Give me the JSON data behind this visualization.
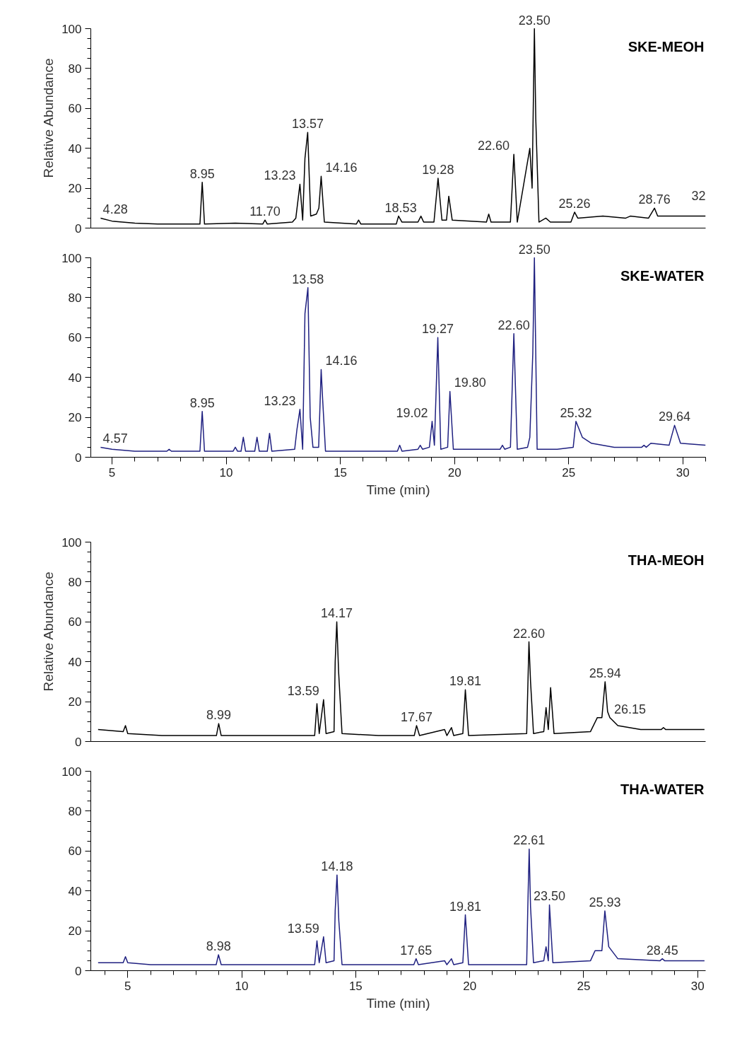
{
  "chart_data": [
    {
      "type": "line",
      "title": "SKE-MEOH",
      "ylabel": "Relative Abundance",
      "xlim": [
        4.07,
        31.0
      ],
      "ylim": [
        0,
        100
      ],
      "yticks": [
        0,
        20,
        40,
        60,
        80,
        100
      ],
      "tick_labels": "y",
      "grid": false,
      "series": [
        {
          "color": "#000000",
          "x": [
            4.5,
            5.0,
            6.0,
            7.0,
            8.85,
            8.95,
            9.05,
            10.4,
            11.6,
            11.7,
            11.8,
            12.9,
            13.05,
            13.23,
            13.35,
            13.45,
            13.57,
            13.7,
            13.95,
            14.06,
            14.16,
            14.3,
            15.7,
            15.8,
            15.9,
            17.45,
            17.55,
            17.7,
            18.4,
            18.53,
            18.65,
            19.1,
            19.28,
            19.45,
            19.65,
            19.75,
            19.9,
            21.4,
            21.5,
            21.6,
            22.45,
            22.6,
            22.75,
            23.3,
            23.4,
            23.5,
            23.56,
            23.7,
            24.0,
            24.2,
            25.1,
            25.26,
            25.4,
            26.5,
            27.5,
            27.7,
            28.5,
            28.76,
            28.9,
            30.0,
            31.0
          ],
          "values": [
            5,
            3.5,
            2.5,
            2,
            2,
            23,
            2,
            2.5,
            2,
            4,
            2,
            3,
            5,
            22,
            4,
            35,
            48,
            6,
            7,
            10,
            26,
            3,
            2,
            4,
            2,
            2,
            6,
            3,
            3,
            6,
            3,
            3,
            25,
            4,
            4,
            16,
            4,
            3,
            7,
            3,
            3,
            37,
            3,
            40,
            20,
            100,
            55,
            3,
            5,
            3,
            3,
            8,
            5,
            6,
            5,
            6,
            5,
            10,
            6,
            6,
            6
          ]
        }
      ],
      "annotations": [
        {
          "text": "4.28",
          "x": 4.6,
          "y": 5
        },
        {
          "text": "8.95",
          "x": 8.95,
          "y": 23
        },
        {
          "text": "11.70",
          "x": 11.7,
          "y": 4
        },
        {
          "text": "13.23",
          "x": 13.23,
          "y": 22
        },
        {
          "text": "13.57",
          "x": 13.57,
          "y": 48
        },
        {
          "text": "14.16",
          "x": 14.16,
          "y": 26
        },
        {
          "text": "18.53",
          "x": 18.53,
          "y": 6
        },
        {
          "text": "19.28",
          "x": 19.28,
          "y": 25
        },
        {
          "text": "22.60",
          "x": 22.6,
          "y": 37
        },
        {
          "text": "23.50",
          "x": 23.5,
          "y": 100
        },
        {
          "text": "25.26",
          "x": 25.26,
          "y": 8
        },
        {
          "text": "28.76",
          "x": 28.76,
          "y": 10
        },
        "32"
      ]
    },
    {
      "type": "line",
      "title": "SKE-WATER",
      "xlabel": "Time (min)",
      "xlim": [
        4.07,
        31.0
      ],
      "ylim": [
        0,
        100
      ],
      "xticks": [
        5,
        10,
        15,
        20,
        25,
        30
      ],
      "yticks": [
        0,
        20,
        40,
        60,
        80,
        100
      ],
      "grid": false,
      "series": [
        {
          "color": "#1f2080",
          "x": [
            4.5,
            5.0,
            6.0,
            7.4,
            7.5,
            7.6,
            8.85,
            8.95,
            9.05,
            10.3,
            10.4,
            10.5,
            10.65,
            10.75,
            10.85,
            11.25,
            11.35,
            11.45,
            11.8,
            11.9,
            12.0,
            13.0,
            13.1,
            13.23,
            13.35,
            13.45,
            13.58,
            13.68,
            13.8,
            14.05,
            14.16,
            14.22,
            14.35,
            17.5,
            17.6,
            17.7,
            18.4,
            18.5,
            18.6,
            18.9,
            19.02,
            19.12,
            19.27,
            19.4,
            19.7,
            19.8,
            19.95,
            20.5,
            22.0,
            22.1,
            22.2,
            22.45,
            22.6,
            22.75,
            23.2,
            23.3,
            23.43,
            23.5,
            23.62,
            24.5,
            25.2,
            25.32,
            25.6,
            26.0,
            27.0,
            28.2,
            28.3,
            28.4,
            28.6,
            29.4,
            29.64,
            29.9,
            31.0
          ],
          "values": [
            5,
            4,
            3,
            3,
            4,
            3,
            3,
            23,
            3,
            3,
            5,
            3,
            3,
            10,
            3,
            3,
            10,
            3,
            3,
            12,
            3,
            4,
            14,
            24,
            4,
            72,
            85,
            20,
            5,
            5,
            44,
            30,
            3,
            3,
            6,
            3,
            4,
            6,
            4,
            5,
            18,
            6,
            60,
            4,
            5,
            33,
            4,
            4,
            4,
            6,
            4,
            5,
            62,
            4,
            5,
            10,
            52,
            100,
            4,
            4,
            5,
            18,
            10,
            7,
            5,
            5,
            6,
            5,
            7,
            6,
            16,
            7,
            6
          ]
        }
      ],
      "annotations": [
        {
          "text": "4.57",
          "x": 4.6,
          "y": 5
        },
        {
          "text": "8.95",
          "x": 8.95,
          "y": 23
        },
        {
          "text": "13.23",
          "x": 13.23,
          "y": 24
        },
        {
          "text": "13.58",
          "x": 13.58,
          "y": 85
        },
        {
          "text": "14.16",
          "x": 14.16,
          "y": 44
        },
        {
          "text": "19.02",
          "x": 19.02,
          "y": 18
        },
        {
          "text": "19.27",
          "x": 19.27,
          "y": 60
        },
        {
          "text": "19.80",
          "x": 19.8,
          "y": 33
        },
        {
          "text": "22.60",
          "x": 22.6,
          "y": 62
        },
        {
          "text": "23.50",
          "x": 23.5,
          "y": 100
        },
        {
          "text": "25.32",
          "x": 25.32,
          "y": 18
        },
        {
          "text": "29.64",
          "x": 29.64,
          "y": 16
        }
      ]
    },
    {
      "type": "line",
      "title": "THA-MEOH",
      "ylabel": "Relative Abundance",
      "xlim": [
        3.38,
        30.35
      ],
      "ylim": [
        0,
        100
      ],
      "yticks": [
        0,
        20,
        40,
        60,
        80,
        100
      ],
      "tick_labels": "y",
      "grid": false,
      "series": [
        {
          "color": "#000000",
          "x": [
            3.7,
            4.8,
            4.9,
            5.0,
            6.5,
            8.89,
            8.99,
            9.1,
            11.5,
            13.2,
            13.3,
            13.4,
            13.59,
            13.7,
            14.05,
            14.1,
            14.17,
            14.25,
            14.4,
            16.0,
            17.57,
            17.67,
            17.8,
            18.9,
            19.0,
            19.2,
            19.3,
            19.7,
            19.81,
            19.95,
            22.5,
            22.6,
            22.67,
            22.8,
            23.25,
            23.35,
            23.45,
            23.55,
            23.7,
            25.3,
            25.6,
            25.8,
            25.94,
            26.05,
            26.15,
            26.5,
            27.5,
            28.4,
            28.5,
            28.6,
            30.3
          ],
          "values": [
            6,
            5,
            8,
            4,
            3,
            3,
            9,
            3,
            3,
            3,
            19,
            4,
            21,
            4,
            5,
            40,
            60,
            35,
            4,
            3,
            3,
            8,
            3,
            6,
            3,
            7,
            3,
            4,
            26,
            3,
            4,
            50,
            30,
            4,
            5,
            17,
            6,
            27,
            4,
            5,
            12,
            12,
            30,
            15,
            12,
            8,
            6,
            6,
            7,
            6,
            6
          ]
        }
      ],
      "annotations": [
        {
          "text": "8.99",
          "x": 8.99,
          "y": 9
        },
        {
          "text": "13.59",
          "x": 13.59,
          "y": 21
        },
        {
          "text": "14.17",
          "x": 14.17,
          "y": 60
        },
        {
          "text": "17.67",
          "x": 17.67,
          "y": 8
        },
        {
          "text": "19.81",
          "x": 19.81,
          "y": 26
        },
        {
          "text": "22.60",
          "x": 22.6,
          "y": 50
        },
        {
          "text": "25.94",
          "x": 25.94,
          "y": 30
        },
        {
          "text": "26.15",
          "x": 26.15,
          "y": 12
        }
      ]
    },
    {
      "type": "line",
      "title": "THA-WATER",
      "xlabel": "Time (min)",
      "xlim": [
        3.38,
        30.35
      ],
      "ylim": [
        0,
        100
      ],
      "xticks": [
        5,
        10,
        15,
        20,
        25,
        30
      ],
      "yticks": [
        0,
        20,
        40,
        60,
        80,
        100
      ],
      "grid": false,
      "series": [
        {
          "color": "#1f2080",
          "x": [
            3.7,
            4.8,
            4.9,
            5.0,
            6.0,
            8.88,
            8.98,
            9.1,
            13.2,
            13.3,
            13.4,
            13.59,
            13.7,
            14.05,
            14.1,
            14.18,
            14.26,
            14.4,
            17.55,
            17.65,
            17.75,
            18.9,
            19.0,
            19.2,
            19.3,
            19.7,
            19.81,
            19.95,
            22.5,
            22.55,
            22.61,
            22.67,
            22.8,
            23.25,
            23.35,
            23.45,
            23.5,
            23.65,
            25.3,
            25.5,
            25.8,
            25.93,
            26.1,
            26.5,
            28.35,
            28.45,
            28.55,
            30.3
          ],
          "values": [
            4,
            4,
            7,
            4,
            3,
            3,
            8,
            3,
            3,
            15,
            4,
            17,
            4,
            5,
            30,
            48,
            25,
            3,
            3,
            6,
            3,
            5,
            3,
            6,
            3,
            4,
            28,
            3,
            3,
            32,
            61,
            32,
            4,
            5,
            12,
            5,
            33,
            4,
            5,
            10,
            10,
            30,
            12,
            6,
            5,
            6,
            5,
            5
          ]
        }
      ],
      "annotations": [
        {
          "text": "8.98",
          "x": 8.98,
          "y": 8
        },
        {
          "text": "13.59",
          "x": 13.59,
          "y": 17
        },
        {
          "text": "14.18",
          "x": 14.18,
          "y": 48
        },
        {
          "text": "17.65",
          "x": 17.65,
          "y": 6
        },
        {
          "text": "19.81",
          "x": 19.81,
          "y": 28
        },
        {
          "text": "22.61",
          "x": 22.61,
          "y": 61
        },
        {
          "text": "23.50",
          "x": 23.5,
          "y": 33
        },
        {
          "text": "25.93",
          "x": 25.93,
          "y": 30
        },
        {
          "text": "28.45",
          "x": 28.45,
          "y": 6
        }
      ]
    }
  ]
}
